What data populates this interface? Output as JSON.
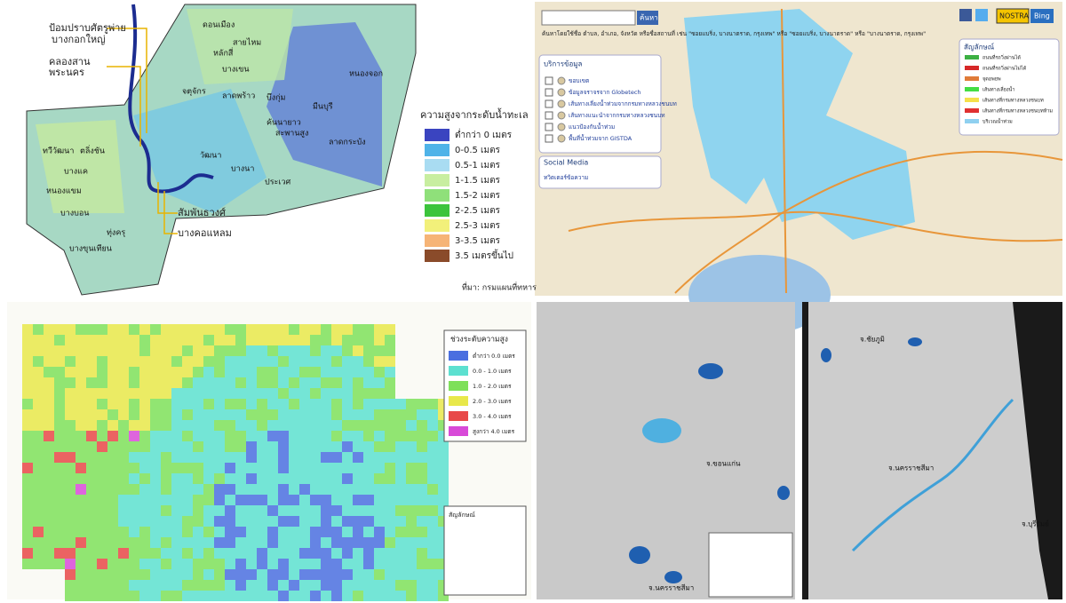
{
  "panels": {
    "bangkok_elevation": {
      "callouts": [
        "ป้อมปราบศัตรูพ่าย",
        "บางกอกใหญ่",
        "คลองสาน",
        "พระนคร",
        "สัมพันธวงศ์",
        "บางคอแหลม"
      ],
      "districts": [
        "ดอนเมือง",
        "สายไหม",
        "หลักสี่",
        "บางเขน",
        "หนองจอก",
        "จตุจักร",
        "ลาดพร้าว",
        "บึงกุ่ม",
        "คันนายาว",
        "มีนบุรี",
        "ลาดกระบัง",
        "ทวีวัฒนา",
        "ตลิ่งชัน",
        "บางแค",
        "หนองแขม",
        "บางบอน",
        "บางขุนเทียน",
        "ทุ่งครุ",
        "วัฒนา",
        "บางนา",
        "ประเวศ",
        "สะพานสูง"
      ],
      "legend": {
        "title": "ความสูงจากระดับน้ำทะเล",
        "items": [
          {
            "label": "ต่ำกว่า 0 เมตร",
            "color": "#3a44c0"
          },
          {
            "label": "0-0.5 เมตร",
            "color": "#4fb3e8"
          },
          {
            "label": "0.5-1 เมตร",
            "color": "#a9dcf2"
          },
          {
            "label": "1-1.5 เมตร",
            "color": "#c8eea0"
          },
          {
            "label": "1.5-2 เมตร",
            "color": "#8fe07a"
          },
          {
            "label": "2-2.5 เมตร",
            "color": "#3cc43c"
          },
          {
            "label": "2.5-3 เมตร",
            "color": "#f2f07a"
          },
          {
            "label": "3-3.5 เมตร",
            "color": "#f6b476"
          },
          {
            "label": "3.5 เมตรขึ้นไป",
            "color": "#8a4b2a"
          }
        ]
      },
      "source": "ที่มา: กรมแผนที่ทหาร"
    },
    "flood_web_map": {
      "search_button": "ค้นหา",
      "search_hint": "ค้นหาโดยใช้ชื่อ ตำบล, อำเภอ, จังหวัด หรือชื่อสถานที่ เช่น \"ซอยแบริ่ง, บางนาตราด, กรุงเทพ\" หรือ \"ซอยแบริ่ง, บางนาตราด\" หรือ \"บางนาตราด, กรุงเทพ\"",
      "brand": [
        "NOSTRA",
        "Bing"
      ],
      "data_service": {
        "title": "บริการข้อมูล",
        "items": [
          "ขอบเขต",
          "ข้อมูลจราจรจาก Globetech",
          "เส้นทางเลี่ยงน้ำท่วมจากกรมทางหลวงชนบท",
          "เส้นทางแนะนำจากกรมทางหลวงชนบท",
          "แนวป้องกันน้ำท่วม",
          "พื้นที่น้ำท่วมจาก GISTDA"
        ]
      },
      "social_media": {
        "title": "Social Media",
        "link": "ทวิตเตอร์ข้อความ"
      },
      "legend": {
        "title": "สัญลักษณ์",
        "items": [
          {
            "label": "ถนนที่รถวิ่งผ่านได้",
            "color": "#3cb043"
          },
          {
            "label": "ถนนที่รถวิ่งผ่านไม่ได้",
            "color": "#d62828"
          },
          {
            "label": "จุดอพยพ",
            "color": "#e07b39"
          },
          {
            "label": "เส้นทางเลี่ยงน้ำ",
            "color": "#44dd44"
          },
          {
            "label": "เส้นทางที่กรมทางหลวงชนบท",
            "color": "#f5e04a"
          },
          {
            "label": "เส้นทางที่กรมทางหลวงชนบทห้าม",
            "color": "#e03030"
          },
          {
            "label": "บริเวณน้ำท่วม",
            "color": "#8fd0f0"
          }
        ]
      }
    },
    "elevation_grid_map": {
      "legend": {
        "title": "ช่วงระดับความสูง",
        "items": [
          {
            "label": "ต่ำกว่า 0.0 เมตร",
            "color": "#4a6fe0"
          },
          {
            "label": "0.0 - 1.0 เมตร",
            "color": "#5ce0d0"
          },
          {
            "label": "1.0 - 2.0 เมตร",
            "color": "#7ee05a"
          },
          {
            "label": "2.0 - 3.0 เมตร",
            "color": "#e8e84a"
          },
          {
            "label": "3.0 - 4.0 เมตร",
            "color": "#e84848"
          },
          {
            "label": "สูงกว่า 4.0 เมตร",
            "color": "#d84ad8"
          }
        ]
      },
      "symbols_title": "สัญลักษณ์"
    },
    "satellite": {
      "left": [
        "จ.ขอนแก่น",
        "จ.นครราชสีมา"
      ],
      "right": [
        "จ.ชัยภูมิ",
        "จ.นครราชสีมา",
        "จ.บุรีรัมย์"
      ]
    }
  }
}
